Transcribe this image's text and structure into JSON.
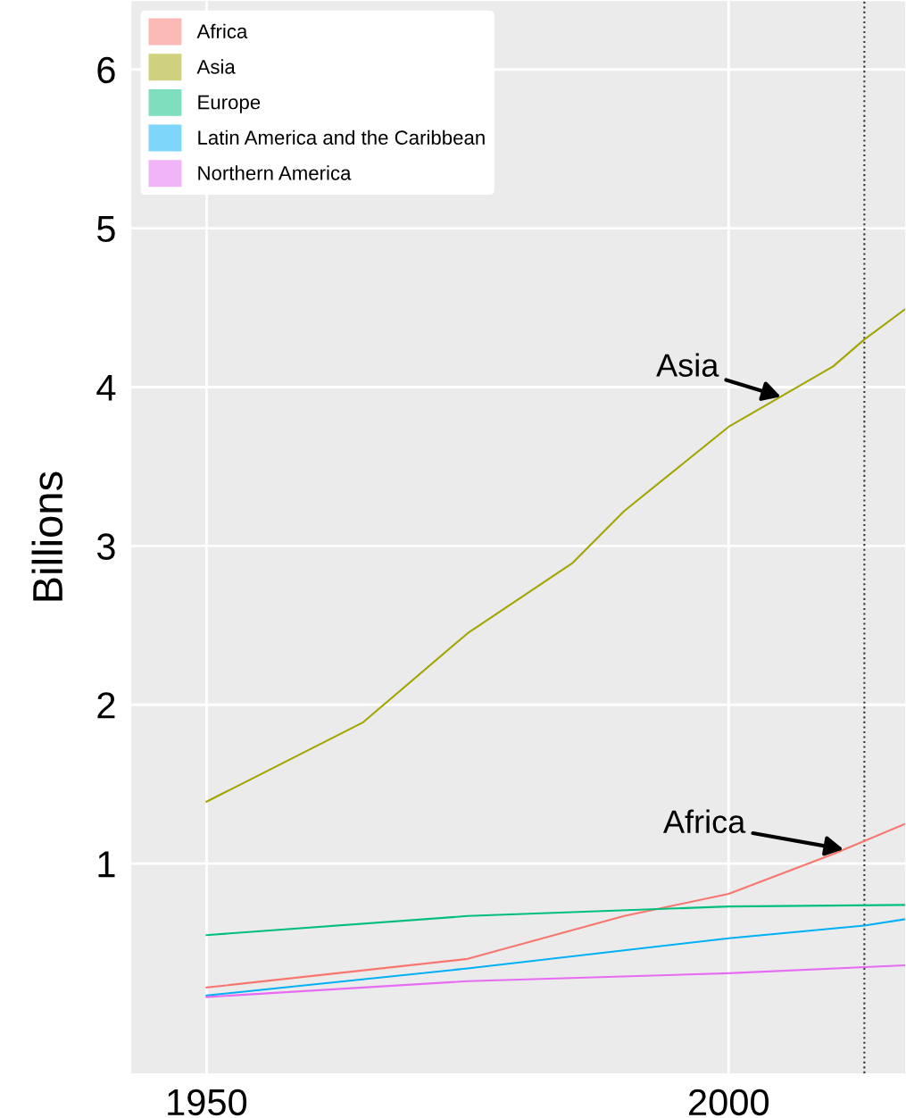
{
  "chart_data": {
    "type": "line",
    "ylabel": "Billions",
    "series": [
      {
        "name": "Africa",
        "color": "#f8766d",
        "x": [
          1950,
          1975,
          1990,
          2000,
          2010,
          2016.9
        ],
        "values": [
          0.22,
          0.4,
          0.67,
          0.81,
          1.06,
          1.25
        ]
      },
      {
        "name": "Asia",
        "color": "#a3a500",
        "x": [
          1950,
          1965,
          1975,
          1985,
          1990,
          2000,
          2010,
          2013,
          2016.9
        ],
        "values": [
          1.39,
          1.89,
          2.45,
          2.89,
          3.22,
          3.75,
          4.13,
          4.3,
          4.49
        ]
      },
      {
        "name": "Europe",
        "color": "#00bf7d",
        "x": [
          1950,
          1975,
          2000,
          2016.9
        ],
        "values": [
          0.55,
          0.67,
          0.73,
          0.74
        ]
      },
      {
        "name": "Latin America and the Caribbean",
        "color": "#00b0f6",
        "x": [
          1950,
          1975,
          2000,
          2013,
          2016.9
        ],
        "values": [
          0.17,
          0.34,
          0.53,
          0.61,
          0.65
        ]
      },
      {
        "name": "Northern America",
        "color": "#e76bf3",
        "x": [
          1950,
          1975,
          2000,
          2016.9
        ],
        "values": [
          0.16,
          0.26,
          0.31,
          0.36
        ]
      }
    ],
    "xlim": [
      1942.8,
      2016.9
    ],
    "ylim": [
      -0.32,
      6.43
    ],
    "xticks": [
      1950,
      2000
    ],
    "yticks": [
      1,
      2,
      3,
      4,
      5,
      6
    ],
    "ref_lines": [
      {
        "axis": "x",
        "value": 2013,
        "color": "#333333",
        "line_style": "dotted"
      }
    ],
    "annotations": [
      {
        "text": "Asia",
        "x": 2005,
        "y": 3.94
      },
      {
        "text": "Africa",
        "x": 2011,
        "y": 1.09
      }
    ],
    "grid": true,
    "legend": "top left"
  }
}
